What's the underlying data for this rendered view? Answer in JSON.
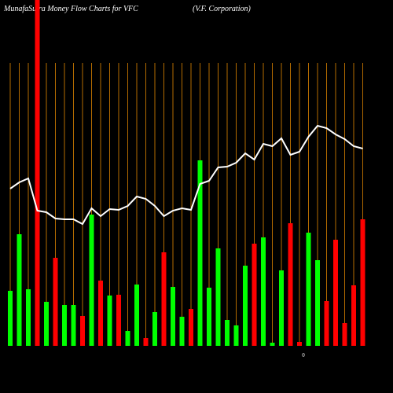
{
  "chart_data": {
    "type": "bar",
    "title": "MunafaSutra  Money Flow  Charts for VFC",
    "subtitle": "(V.F. Corporation)",
    "annotation": "0",
    "categories": [
      null,
      null,
      null,
      null,
      null,
      null,
      null,
      null,
      null,
      null,
      null,
      null,
      null,
      null,
      null,
      null,
      null,
      null,
      null,
      null,
      null,
      null,
      null,
      null,
      null,
      null,
      null,
      null,
      null,
      null,
      null,
      null,
      null,
      null,
      null,
      null,
      null,
      null,
      null,
      null
    ],
    "ylim": [
      0,
      440
    ],
    "series": [
      {
        "type": "bar",
        "values": [
          70,
          142,
          72,
          440,
          56,
          112,
          52,
          52,
          38,
          167,
          83,
          64,
          65,
          19,
          78,
          10,
          43,
          119,
          75,
          37,
          47,
          236,
          74,
          124,
          33,
          26,
          102,
          130,
          138,
          4,
          96,
          156,
          5,
          144,
          109,
          57,
          135,
          29,
          77,
          161
        ],
        "colors": [
          "#00ff00",
          "#00ff00",
          "#00ff00",
          "#ff0000",
          "#00ff00",
          "#ff0000",
          "#00ff00",
          "#00ff00",
          "#ff0000",
          "#00ff00",
          "#ff0000",
          "#00ff00",
          "#ff0000",
          "#00ff00",
          "#00ff00",
          "#ff0000",
          "#00ff00",
          "#ff0000",
          "#00ff00",
          "#00ff00",
          "#ff0000",
          "#00ff00",
          "#00ff00",
          "#00ff00",
          "#00ff00",
          "#00ff00",
          "#00ff00",
          "#ff0000",
          "#00ff00",
          "#00ff00",
          "#00ff00",
          "#ff0000",
          "#ff0000",
          "#00ff00",
          "#00ff00",
          "#ff0000",
          "#ff0000",
          "#ff0000",
          "#ff0000",
          "#ff0000"
        ]
      },
      {
        "type": "line",
        "color": "#ffffff",
        "values": [
          200,
          208,
          213,
          172,
          170,
          162,
          161,
          161,
          155,
          175,
          165,
          174,
          173,
          178,
          190,
          187,
          178,
          165,
          172,
          175,
          173,
          206,
          210,
          227,
          228,
          233,
          245,
          237,
          257,
          254,
          264,
          243,
          247,
          266,
          280,
          277,
          269,
          263,
          254,
          251
        ]
      }
    ],
    "grid_color": "#b36b00"
  }
}
